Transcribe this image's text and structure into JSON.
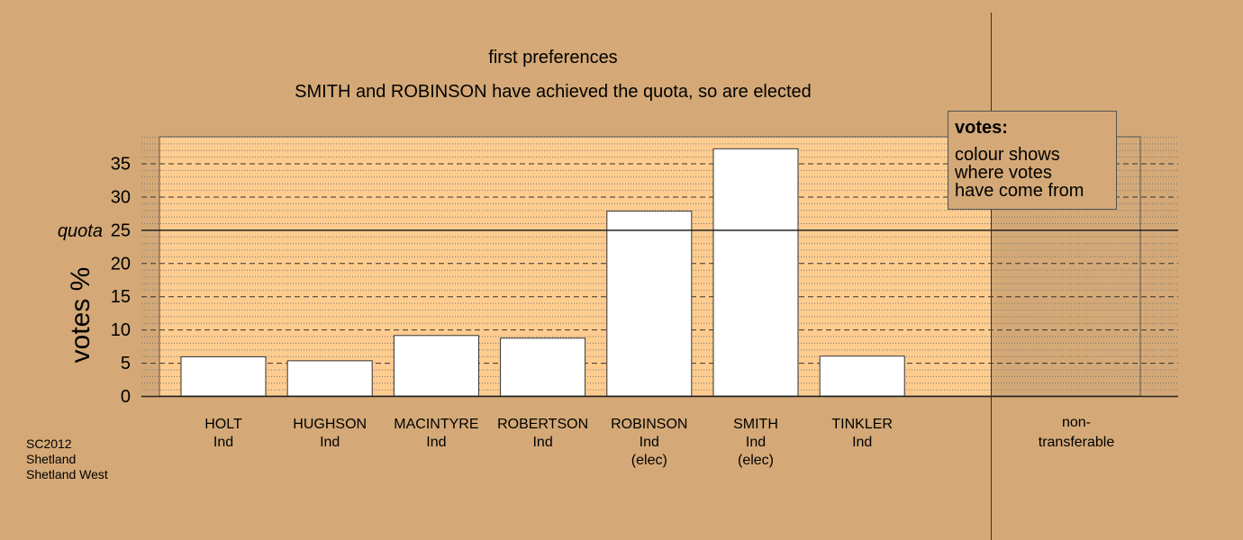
{
  "title": "first preferences",
  "subtitle": "SMITH and ROBINSON have achieved the quota, so are elected",
  "legend": {
    "title": "votes:",
    "lines": [
      "colour shows",
      "where votes",
      "have come from"
    ]
  },
  "footer": [
    "SC2012",
    "Shetland",
    "Shetland West"
  ],
  "colors": {
    "background": "#d4a977",
    "plot_area": "#ffcc8f",
    "right_panel": "#d4a977",
    "bar_fill": "#ffffff"
  },
  "chart_data": {
    "type": "bar",
    "ylabel": "votes %",
    "ylim": [
      0,
      39
    ],
    "yticks": [
      0,
      5,
      10,
      15,
      20,
      25,
      30,
      35
    ],
    "quota": 25,
    "quota_label": "quota",
    "categories": [
      {
        "name": "HOLT",
        "party": "Ind",
        "status": "",
        "value": 5.9
      },
      {
        "name": "HUGHSON",
        "party": "Ind",
        "status": "",
        "value": 5.3
      },
      {
        "name": "MACINTYRE",
        "party": "Ind",
        "status": "",
        "value": 9.1
      },
      {
        "name": "ROBERTSON",
        "party": "Ind",
        "status": "",
        "value": 8.7
      },
      {
        "name": "ROBINSON",
        "party": "Ind",
        "status": "(elec)",
        "value": 27.8
      },
      {
        "name": "SMITH",
        "party": "Ind",
        "status": "(elec)",
        "value": 37.2
      },
      {
        "name": "TINKLER",
        "party": "Ind",
        "status": "",
        "value": 6.0
      }
    ],
    "nontransferable": {
      "label_line1": "non-",
      "label_line2": "transferable",
      "value": 0
    },
    "grid": true
  }
}
